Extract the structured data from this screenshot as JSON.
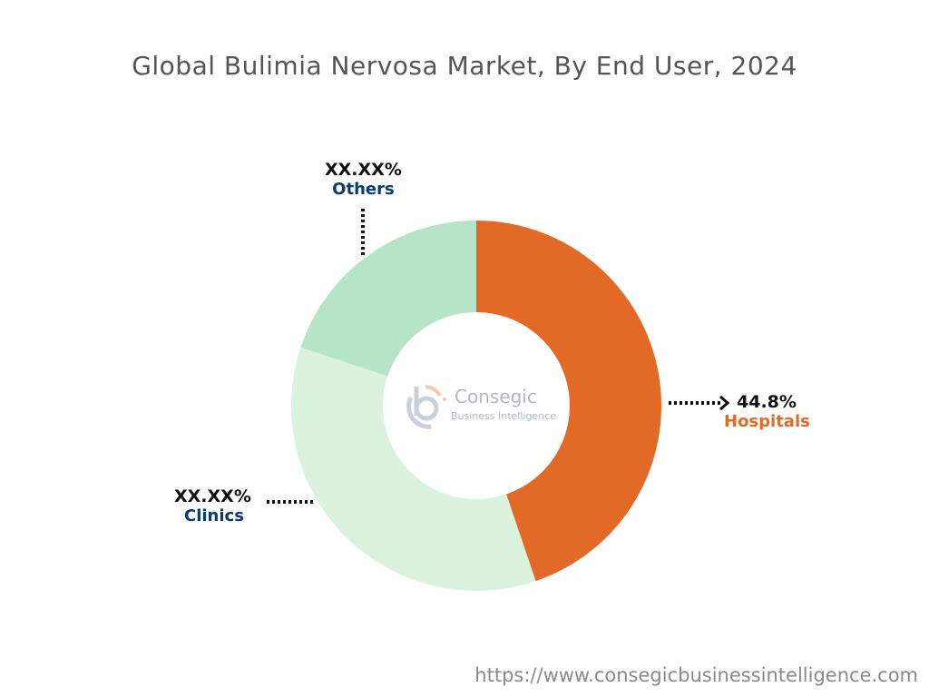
{
  "title": "Global Bulimia Nervosa Market, By End User, 2024",
  "chart_data": {
    "type": "pie",
    "variant": "donut",
    "title": "Global Bulimia Nervosa Market, By End User, 2024",
    "slices": [
      {
        "name": "Hospitals",
        "value": 44.8,
        "label": "44.8%",
        "color": "#e36a26",
        "label_color": "#e36a26"
      },
      {
        "name": "Clinics",
        "value": 35.3,
        "label": "XX.XX%",
        "color": "#daf2de",
        "label_color": "#0d3b6e"
      },
      {
        "name": "Others",
        "value": 19.9,
        "label": "XX.XX%",
        "color": "#b6e4c9",
        "label_color": "#0d3b6e"
      }
    ],
    "start_angle": "top, clockwise"
  },
  "watermark": {
    "line1": "Consegic",
    "line2": "Business Intelligence"
  },
  "footer_url": "https://www.consegicbusinessintelligence.com"
}
